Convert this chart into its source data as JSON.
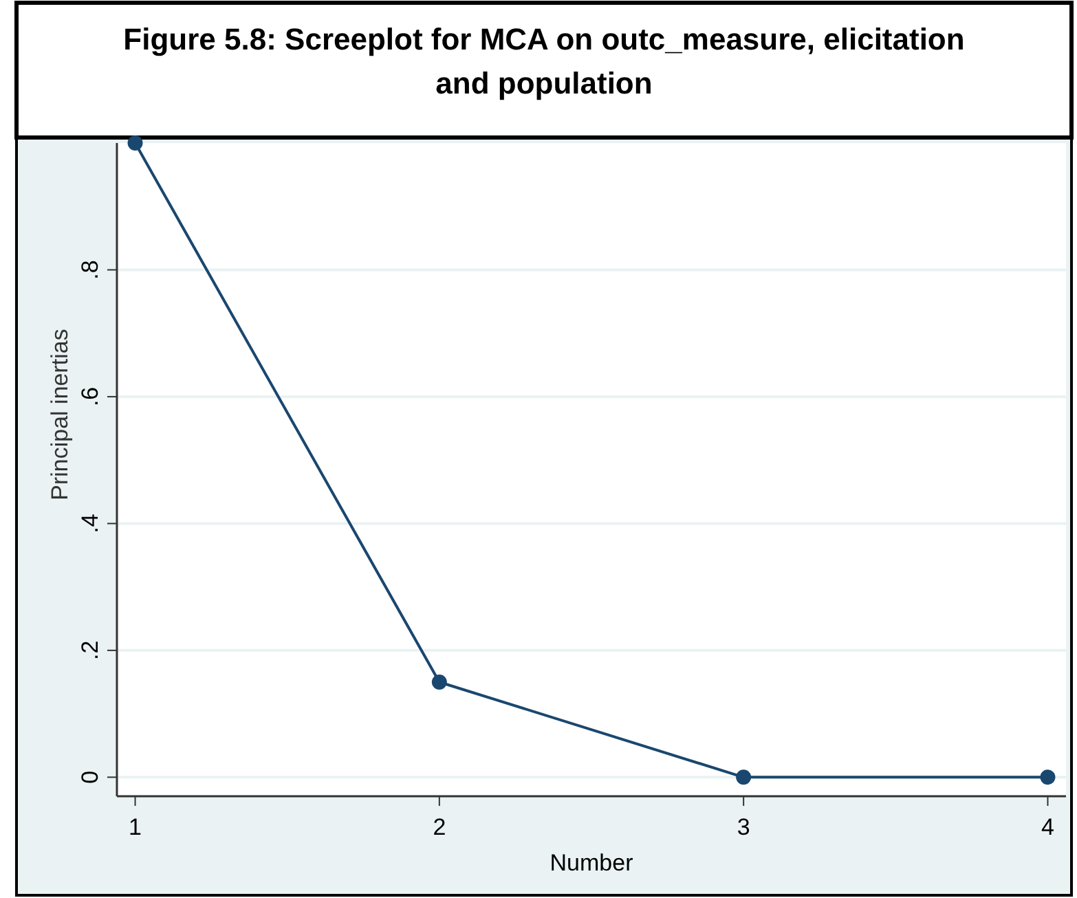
{
  "chart_data": {
    "type": "line",
    "title": "Figure 5.8: Screeplot for MCA on outc_measure, elicitation and population",
    "xlabel": "Number",
    "ylabel": "Principal inertias",
    "x": [
      1,
      2,
      3,
      4
    ],
    "series": [
      {
        "color": "#1a476f",
        "values": [
          1.0,
          0.15,
          0,
          0
        ]
      }
    ],
    "xlim": [
      0.94,
      4.06
    ],
    "xticks": [
      1,
      2,
      3,
      4
    ],
    "ylim": [
      -0.03,
      1.0
    ],
    "yticks": [
      {
        "value": 0,
        "label": "0"
      },
      {
        "value": 0.2,
        "label": ".2"
      },
      {
        "value": 0.4,
        "label": ".4"
      },
      {
        "value": 0.6,
        "label": ".6"
      },
      {
        "value": 0.8,
        "label": ".8"
      }
    ],
    "grid": "y",
    "marker": "circle",
    "line_style": "solid"
  }
}
